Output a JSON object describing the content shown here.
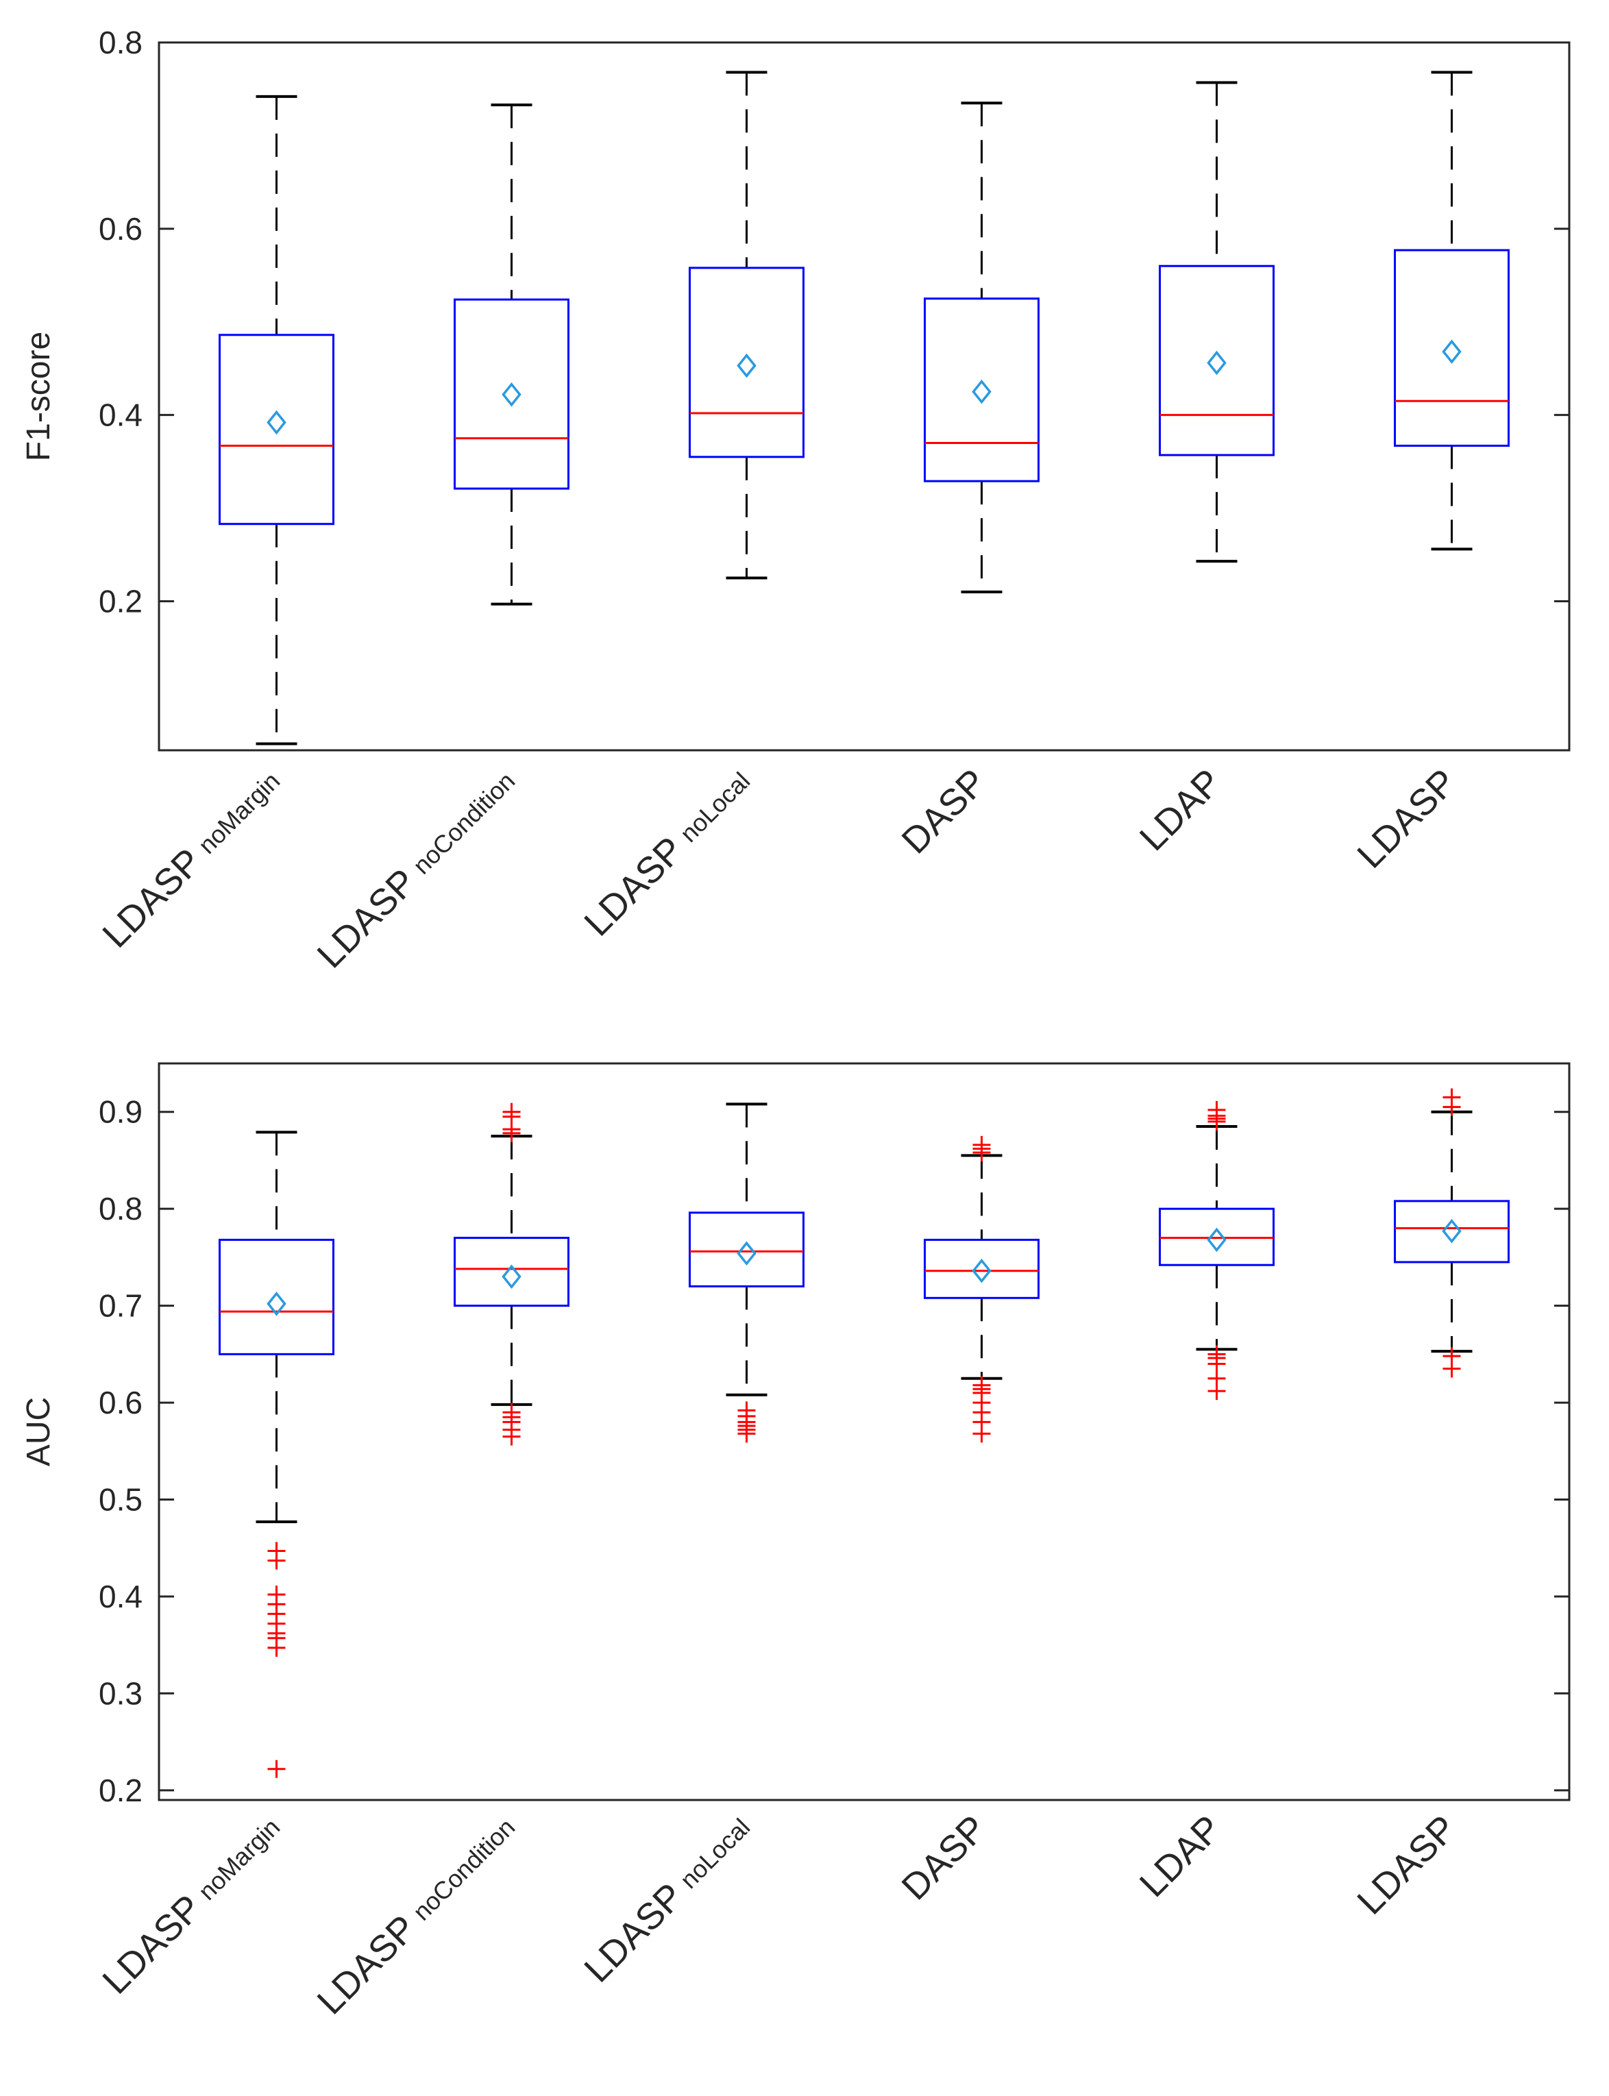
{
  "chart_data": [
    {
      "type": "box",
      "ylabel": "F1-score",
      "ylim": [
        0.04,
        0.8
      ],
      "yticks": [
        "0.2",
        "0.4",
        "0.6",
        "0.8"
      ],
      "grid": false,
      "categories": [
        {
          "main": "LDASP",
          "sub": "noMargin"
        },
        {
          "main": "LDASP",
          "sub": "noCondition"
        },
        {
          "main": "LDASP",
          "sub": "noLocal"
        },
        {
          "main": "DASP",
          "sub": ""
        },
        {
          "main": "LDAP",
          "sub": ""
        },
        {
          "main": "LDASP",
          "sub": ""
        }
      ],
      "boxes": [
        {
          "whisker_low": 0.047,
          "q1": 0.283,
          "median": 0.367,
          "q3": 0.486,
          "whisker_high": 0.742,
          "mean": 0.392,
          "outliers": []
        },
        {
          "whisker_low": 0.197,
          "q1": 0.321,
          "median": 0.375,
          "q3": 0.524,
          "whisker_high": 0.733,
          "mean": 0.422,
          "outliers": []
        },
        {
          "whisker_low": 0.225,
          "q1": 0.355,
          "median": 0.402,
          "q3": 0.558,
          "whisker_high": 0.768,
          "mean": 0.453,
          "outliers": []
        },
        {
          "whisker_low": 0.21,
          "q1": 0.329,
          "median": 0.37,
          "q3": 0.525,
          "whisker_high": 0.735,
          "mean": 0.425,
          "outliers": []
        },
        {
          "whisker_low": 0.243,
          "q1": 0.357,
          "median": 0.4,
          "q3": 0.56,
          "whisker_high": 0.757,
          "mean": 0.456,
          "outliers": []
        },
        {
          "whisker_low": 0.256,
          "q1": 0.367,
          "median": 0.415,
          "q3": 0.577,
          "whisker_high": 0.768,
          "mean": 0.468,
          "outliers": []
        }
      ]
    },
    {
      "type": "box",
      "ylabel": "AUC",
      "ylim": [
        0.19,
        0.95
      ],
      "yticks": [
        "0.2",
        "0.3",
        "0.4",
        "0.5",
        "0.6",
        "0.7",
        "0.8",
        "0.9"
      ],
      "grid": false,
      "categories": [
        {
          "main": "LDASP",
          "sub": "noMargin"
        },
        {
          "main": "LDASP",
          "sub": "noCondition"
        },
        {
          "main": "LDASP",
          "sub": "noLocal"
        },
        {
          "main": "DASP",
          "sub": ""
        },
        {
          "main": "LDAP",
          "sub": ""
        },
        {
          "main": "LDASP",
          "sub": ""
        }
      ],
      "boxes": [
        {
          "whisker_low": 0.477,
          "q1": 0.65,
          "median": 0.694,
          "q3": 0.768,
          "whisker_high": 0.879,
          "mean": 0.702,
          "outliers": [
            0.447,
            0.437,
            0.402,
            0.392,
            0.382,
            0.372,
            0.362,
            0.357,
            0.347,
            0.222
          ]
        },
        {
          "whisker_low": 0.598,
          "q1": 0.7,
          "median": 0.738,
          "q3": 0.77,
          "whisker_high": 0.875,
          "mean": 0.73,
          "outliers": [
            0.9,
            0.895,
            0.882,
            0.878,
            0.59,
            0.585,
            0.58,
            0.572,
            0.565
          ]
        },
        {
          "whisker_low": 0.608,
          "q1": 0.72,
          "median": 0.756,
          "q3": 0.796,
          "whisker_high": 0.908,
          "mean": 0.754,
          "outliers": [
            0.592,
            0.586,
            0.58,
            0.576,
            0.572,
            0.568
          ]
        },
        {
          "whisker_low": 0.625,
          "q1": 0.708,
          "median": 0.736,
          "q3": 0.768,
          "whisker_high": 0.855,
          "mean": 0.736,
          "outliers": [
            0.866,
            0.862,
            0.858,
            0.618,
            0.614,
            0.61,
            0.6,
            0.59,
            0.58,
            0.568
          ]
        },
        {
          "whisker_low": 0.655,
          "q1": 0.742,
          "median": 0.77,
          "q3": 0.8,
          "whisker_high": 0.885,
          "mean": 0.768,
          "outliers": [
            0.902,
            0.896,
            0.893,
            0.89,
            0.65,
            0.646,
            0.64,
            0.625,
            0.612
          ]
        },
        {
          "whisker_low": 0.653,
          "q1": 0.745,
          "median": 0.78,
          "q3": 0.808,
          "whisker_high": 0.9,
          "mean": 0.777,
          "outliers": [
            0.915,
            0.905,
            0.648,
            0.635
          ]
        }
      ]
    }
  ]
}
